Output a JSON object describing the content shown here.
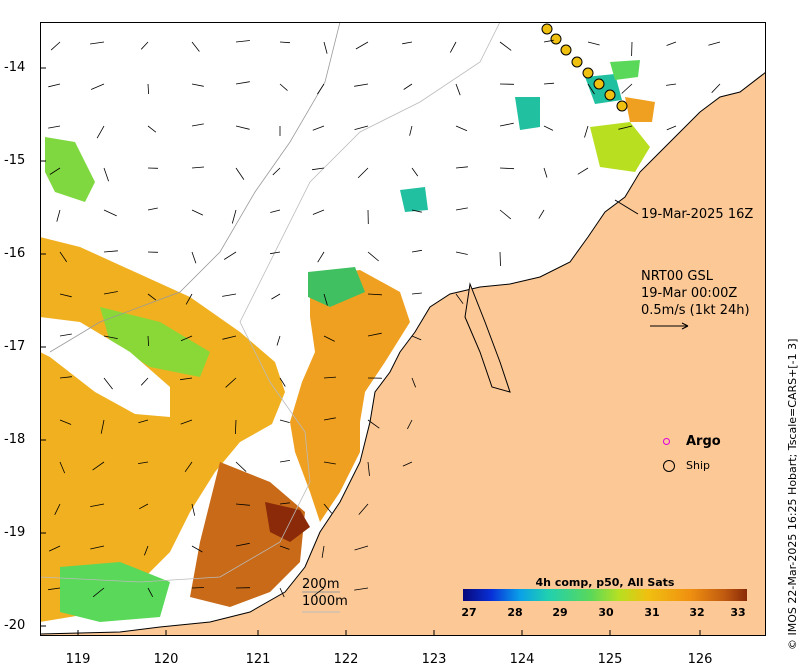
{
  "map": {
    "y_ticks": [
      "-14",
      "-15",
      "-16",
      "-17",
      "-18",
      "-19",
      "-20"
    ],
    "x_ticks": [
      "119",
      "120",
      "121",
      "122",
      "123",
      "124",
      "125",
      "126"
    ],
    "timestamp_label": "19-Mar-2025 16Z",
    "wind_source": "NRT00 GSL",
    "wind_time": "19-Mar 00:00Z",
    "wind_scale_text": "0.5m/s (1kt 24h)",
    "contour_200": "200m",
    "contour_1000": "1000m",
    "credit": "© IMOS 22-Mar-2025 16:25 Hobart; Tscale=CARS+[-1 3]"
  },
  "legend": {
    "argo_label": "Argo",
    "ship_label": "Ship",
    "argo_color": "#e000e0"
  },
  "colorbar": {
    "title": "4h comp, p50, All Sats",
    "ticks": [
      "27",
      "28",
      "29",
      "30",
      "31",
      "32",
      "33"
    ]
  },
  "colors": {
    "land": "#fcc896",
    "sst_warm": "#f0a820",
    "sst_hot": "#c05a10",
    "sst_mid": "#5ad85a"
  }
}
